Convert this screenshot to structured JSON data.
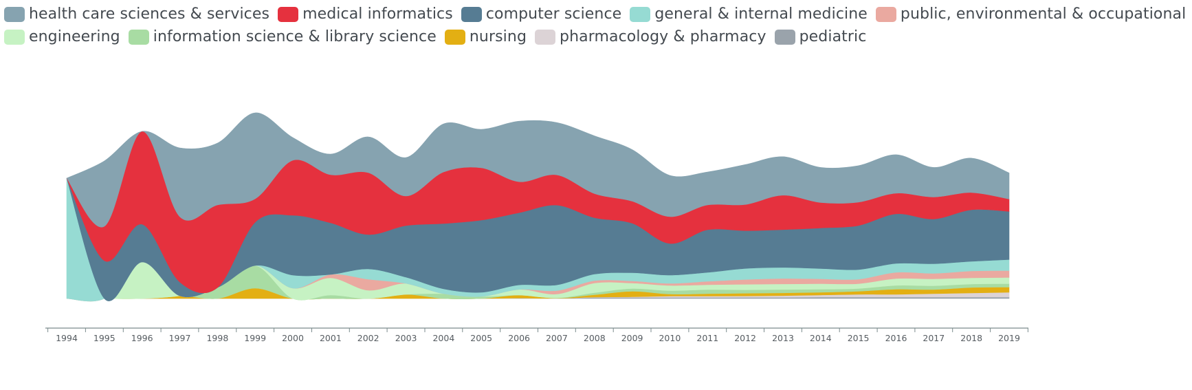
{
  "chart_data": {
    "type": "area",
    "subtype": "streamgraph",
    "title": "",
    "xlabel": "",
    "ylabel": "",
    "x": [
      "1994",
      "1995",
      "1996",
      "1997",
      "1998",
      "1999",
      "2000",
      "2001",
      "2002",
      "2003",
      "2004",
      "2005",
      "2006",
      "2007",
      "2008",
      "2009",
      "2010",
      "2011",
      "2012",
      "2013",
      "2014",
      "2015",
      "2016",
      "2017",
      "2018",
      "2019"
    ],
    "legend_position": "top",
    "grid": false,
    "series": [
      {
        "name": "pediatric",
        "color": "#9aa3ab",
        "values": [
          0,
          0,
          0,
          0,
          0,
          0,
          0,
          0,
          0,
          0,
          0,
          0,
          0.7,
          0.3,
          1.5,
          1.5,
          1.5,
          1.5,
          1.7,
          1.7,
          2.1,
          2.1,
          2.1,
          2.1,
          2.1,
          2.1
        ]
      },
      {
        "name": "pharmacology & pharmacy",
        "color": "#dcd3d6",
        "values": [
          0,
          0,
          0,
          0,
          0,
          0,
          0,
          0,
          0,
          0,
          0,
          0,
          0,
          0,
          0.5,
          1,
          2,
          2,
          2,
          2.5,
          3,
          4,
          4,
          5,
          6,
          7
        ]
      },
      {
        "name": "nursing",
        "color": "#e3af13",
        "values": [
          0,
          0,
          0,
          4,
          0,
          15,
          0,
          0,
          0,
          6,
          0,
          0,
          4.3,
          0.3,
          3.5,
          8,
          3,
          3.5,
          4,
          4,
          4,
          4.5,
          7.5,
          6,
          8,
          7.5
        ]
      },
      {
        "name": "information science & library science",
        "color": "#a8dca3",
        "values": [
          0,
          0,
          0,
          0,
          16,
          33,
          0,
          5,
          0,
          0,
          7,
          3,
          0,
          0.3,
          3,
          4,
          5,
          6,
          5,
          5,
          4.5,
          4,
          5.5,
          5.5,
          5,
          5
        ]
      },
      {
        "name": "engineering",
        "color": "#c6f2c3",
        "values": [
          0,
          0,
          53,
          0,
          0,
          0,
          15,
          25,
          12,
          16,
          0,
          0,
          8.3,
          5.6,
          14,
          8,
          7.5,
          7,
          8,
          8,
          8,
          7,
          10,
          10,
          9,
          9
        ]
      },
      {
        "name": "public, environmental & occupational health",
        "color": "#eaa9a0",
        "values": [
          0,
          0,
          0,
          0,
          0,
          0,
          0,
          5,
          16,
          0,
          0,
          0,
          0,
          5,
          3.5,
          3,
          3,
          5,
          7,
          8,
          7,
          6.5,
          9,
          8,
          10,
          10
        ]
      },
      {
        "name": "general & internal medicine",
        "color": "#96dbd3",
        "values": [
          175,
          0,
          0,
          0,
          0,
          0,
          19,
          0,
          15,
          9,
          7,
          6,
          6.5,
          8.3,
          9.5,
          12,
          12,
          13,
          16,
          16,
          15,
          14,
          13,
          14,
          14,
          16
        ]
      },
      {
        "name": "computer science",
        "color": "#567c93",
        "values": [
          0,
          55,
          55,
          20,
          0,
          63,
          87,
          75,
          50,
          75,
          95,
          105,
          105,
          116,
          82,
          72,
          46,
          62,
          55,
          55,
          59,
          64,
          72,
          65,
          75,
          70
        ]
      },
      {
        "name": "medical informatics",
        "color": "#e5313e",
        "values": [
          0,
          50,
          135,
          95,
          120,
          34,
          80,
          70,
          90,
          43,
          75,
          76,
          45,
          44,
          35,
          32,
          39,
          36,
          38,
          50,
          37,
          34,
          30,
          32,
          25,
          18
        ]
      },
      {
        "name": "health care sciences & services",
        "color": "#86a3b0",
        "values": [
          0,
          95,
          0,
          100,
          90,
          125,
          33,
          30,
          52,
          56,
          70,
          56,
          88,
          76,
          84,
          75,
          60,
          48,
          58,
          56,
          51,
          53,
          56,
          43,
          50,
          38
        ]
      }
    ],
    "legend": [
      "health care sciences & services",
      "medical informatics",
      "computer science",
      "general & internal medicine",
      "public, environmental & occupational health",
      "engineering",
      "information science & library science",
      "nursing",
      "pharmacology & pharmacy",
      "pediatric"
    ],
    "legend_rows": [
      [
        {
          "label": "health care sciences & services",
          "color": "#86a3b0"
        },
        {
          "label": "medical informatics",
          "color": "#e5313e"
        },
        {
          "label": "computer science",
          "color": "#567c93"
        },
        {
          "label": "general & internal medicine",
          "color": "#96dbd3"
        },
        {
          "label": "public, environmental & occupational health",
          "color": "#eaa9a0"
        }
      ],
      [
        {
          "label": "engineering",
          "color": "#c6f2c3"
        },
        {
          "label": "information science & library science",
          "color": "#a8dca3"
        },
        {
          "label": "nursing",
          "color": "#e3af13"
        },
        {
          "label": "pharmacology & pharmacy",
          "color": "#dcd3d6"
        },
        {
          "label": "pediatric",
          "color": "#9aa3ab"
        }
      ]
    ]
  }
}
